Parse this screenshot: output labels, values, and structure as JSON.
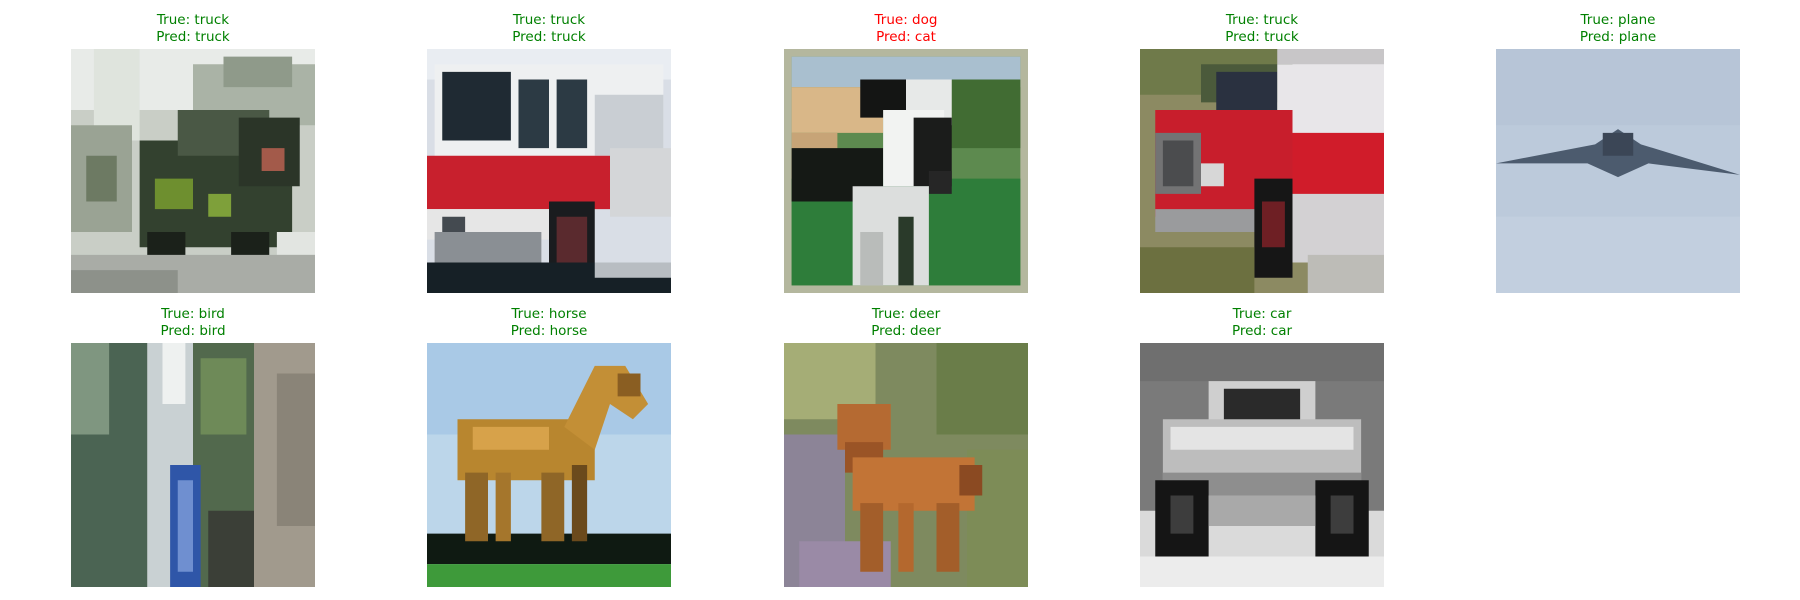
{
  "colors": {
    "correct": "#008000",
    "incorrect": "#ff0000",
    "background": "#ffffff"
  },
  "grid": {
    "rows": 2,
    "columns": 5
  },
  "samples": [
    {
      "true_text": "True: truck",
      "pred_text": "Pred: truck",
      "correct": true,
      "depicts": "truck"
    },
    {
      "true_text": "True: truck",
      "pred_text": "Pred: truck",
      "correct": true,
      "depicts": "fire-truck"
    },
    {
      "true_text": "True: dog",
      "pred_text": "Pred: cat",
      "correct": false,
      "depicts": "dog"
    },
    {
      "true_text": "True: truck",
      "pred_text": "Pred: truck",
      "correct": true,
      "depicts": "red-truck"
    },
    {
      "true_text": "True: plane",
      "pred_text": "Pred: plane",
      "correct": true,
      "depicts": "plane"
    },
    {
      "true_text": "True: bird",
      "pred_text": "Pred: bird",
      "correct": true,
      "depicts": "bird"
    },
    {
      "true_text": "True: horse",
      "pred_text": "Pred: horse",
      "correct": true,
      "depicts": "horse"
    },
    {
      "true_text": "True: deer",
      "pred_text": "Pred: deer",
      "correct": true,
      "depicts": "deer"
    },
    {
      "true_text": "True: car",
      "pred_text": "Pred: car",
      "correct": true,
      "depicts": "car"
    }
  ]
}
